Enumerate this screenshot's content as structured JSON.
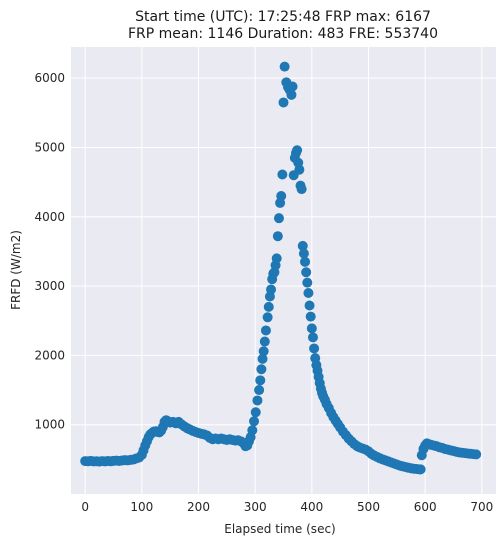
{
  "chart_data": {
    "type": "scatter",
    "title_line1": "Start time (UTC): 17:25:48 FRP max: 6167",
    "title_line2": "FRP mean: 1146 Duration: 483 FRE: 553740",
    "xlabel": "Elapsed time (sec)",
    "ylabel": "FRFD (W/m2)",
    "xlim": [
      -25,
      725
    ],
    "ylim": [
      0,
      6450
    ],
    "xticks": [
      0,
      100,
      200,
      300,
      400,
      500,
      600,
      700
    ],
    "yticks": [
      1000,
      2000,
      3000,
      4000,
      5000,
      6000
    ],
    "grid": true,
    "series_color": "#1f77b4",
    "points": [
      [
        0,
        475
      ],
      [
        5,
        472
      ],
      [
        10,
        478
      ],
      [
        15,
        470
      ],
      [
        20,
        472
      ],
      [
        25,
        468
      ],
      [
        30,
        474
      ],
      [
        35,
        470
      ],
      [
        40,
        476
      ],
      [
        45,
        472
      ],
      [
        50,
        478
      ],
      [
        55,
        482
      ],
      [
        60,
        476
      ],
      [
        65,
        484
      ],
      [
        70,
        488
      ],
      [
        75,
        485
      ],
      [
        80,
        492
      ],
      [
        85,
        497
      ],
      [
        90,
        512
      ],
      [
        95,
        525
      ],
      [
        100,
        565
      ],
      [
        103,
        630
      ],
      [
        106,
        700
      ],
      [
        109,
        760
      ],
      [
        112,
        820
      ],
      [
        115,
        860
      ],
      [
        118,
        880
      ],
      [
        121,
        900
      ],
      [
        125,
        905
      ],
      [
        128,
        895
      ],
      [
        131,
        890
      ],
      [
        134,
        915
      ],
      [
        137,
        965
      ],
      [
        140,
        1040
      ],
      [
        143,
        1065
      ],
      [
        146,
        1050
      ],
      [
        150,
        1030
      ],
      [
        155,
        1040
      ],
      [
        160,
        1020
      ],
      [
        165,
        1040
      ],
      [
        170,
        1005
      ],
      [
        175,
        975
      ],
      [
        180,
        950
      ],
      [
        185,
        930
      ],
      [
        190,
        910
      ],
      [
        195,
        895
      ],
      [
        200,
        880
      ],
      [
        205,
        870
      ],
      [
        210,
        860
      ],
      [
        215,
        845
      ],
      [
        220,
        810
      ],
      [
        225,
        790
      ],
      [
        230,
        800
      ],
      [
        235,
        790
      ],
      [
        240,
        800
      ],
      [
        245,
        790
      ],
      [
        250,
        780
      ],
      [
        255,
        790
      ],
      [
        260,
        780
      ],
      [
        265,
        770
      ],
      [
        270,
        775
      ],
      [
        275,
        760
      ],
      [
        280,
        730
      ],
      [
        283,
        690
      ],
      [
        286,
        700
      ],
      [
        289,
        760
      ],
      [
        292,
        820
      ],
      [
        295,
        920
      ],
      [
        298,
        1050
      ],
      [
        301,
        1180
      ],
      [
        304,
        1350
      ],
      [
        307,
        1500
      ],
      [
        309,
        1640
      ],
      [
        311,
        1800
      ],
      [
        313,
        1950
      ],
      [
        315,
        2060
      ],
      [
        317,
        2200
      ],
      [
        319,
        2360
      ],
      [
        322,
        2550
      ],
      [
        324,
        2700
      ],
      [
        326,
        2850
      ],
      [
        328,
        2950
      ],
      [
        330,
        3100
      ],
      [
        332,
        3180
      ],
      [
        334,
        3200
      ],
      [
        336,
        3300
      ],
      [
        338,
        3400
      ],
      [
        340,
        3720
      ],
      [
        342,
        3980
      ],
      [
        344,
        4200
      ],
      [
        346,
        4300
      ],
      [
        348,
        4610
      ],
      [
        350,
        5650
      ],
      [
        352,
        6167
      ],
      [
        355,
        5940
      ],
      [
        358,
        5870
      ],
      [
        361,
        5830
      ],
      [
        364,
        5760
      ],
      [
        366,
        5880
      ],
      [
        368,
        4600
      ],
      [
        370,
        4850
      ],
      [
        372,
        4920
      ],
      [
        374,
        4960
      ],
      [
        376,
        4780
      ],
      [
        378,
        4680
      ],
      [
        380,
        4450
      ],
      [
        382,
        4400
      ],
      [
        384,
        3580
      ],
      [
        386,
        3470
      ],
      [
        388,
        3350
      ],
      [
        390,
        3200
      ],
      [
        392,
        3050
      ],
      [
        394,
        2900
      ],
      [
        396,
        2720
      ],
      [
        398,
        2560
      ],
      [
        400,
        2390
      ],
      [
        402,
        2260
      ],
      [
        404,
        2100
      ],
      [
        406,
        1960
      ],
      [
        408,
        1860
      ],
      [
        410,
        1780
      ],
      [
        412,
        1690
      ],
      [
        414,
        1600
      ],
      [
        416,
        1520
      ],
      [
        418,
        1460
      ],
      [
        420,
        1410
      ],
      [
        423,
        1360
      ],
      [
        426,
        1300
      ],
      [
        430,
        1240
      ],
      [
        434,
        1170
      ],
      [
        438,
        1110
      ],
      [
        442,
        1060
      ],
      [
        446,
        1010
      ],
      [
        450,
        960
      ],
      [
        455,
        900
      ],
      [
        460,
        850
      ],
      [
        465,
        800
      ],
      [
        470,
        760
      ],
      [
        475,
        720
      ],
      [
        480,
        690
      ],
      [
        485,
        670
      ],
      [
        490,
        655
      ],
      [
        495,
        640
      ],
      [
        500,
        615
      ],
      [
        505,
        580
      ],
      [
        510,
        555
      ],
      [
        515,
        535
      ],
      [
        520,
        515
      ],
      [
        525,
        500
      ],
      [
        530,
        485
      ],
      [
        535,
        470
      ],
      [
        540,
        455
      ],
      [
        545,
        440
      ],
      [
        550,
        425
      ],
      [
        555,
        410
      ],
      [
        560,
        400
      ],
      [
        565,
        390
      ],
      [
        570,
        380
      ],
      [
        575,
        372
      ],
      [
        580,
        365
      ],
      [
        585,
        360
      ],
      [
        590,
        355
      ],
      [
        592,
        355
      ],
      [
        594,
        560
      ],
      [
        597,
        650
      ],
      [
        600,
        700
      ],
      [
        603,
        730
      ],
      [
        606,
        720
      ],
      [
        610,
        710
      ],
      [
        615,
        700
      ],
      [
        620,
        690
      ],
      [
        625,
        675
      ],
      [
        630,
        665
      ],
      [
        635,
        650
      ],
      [
        640,
        640
      ],
      [
        645,
        630
      ],
      [
        650,
        620
      ],
      [
        655,
        610
      ],
      [
        660,
        600
      ],
      [
        665,
        595
      ],
      [
        670,
        590
      ],
      [
        675,
        585
      ],
      [
        680,
        580
      ],
      [
        685,
        575
      ],
      [
        690,
        572
      ]
    ]
  }
}
